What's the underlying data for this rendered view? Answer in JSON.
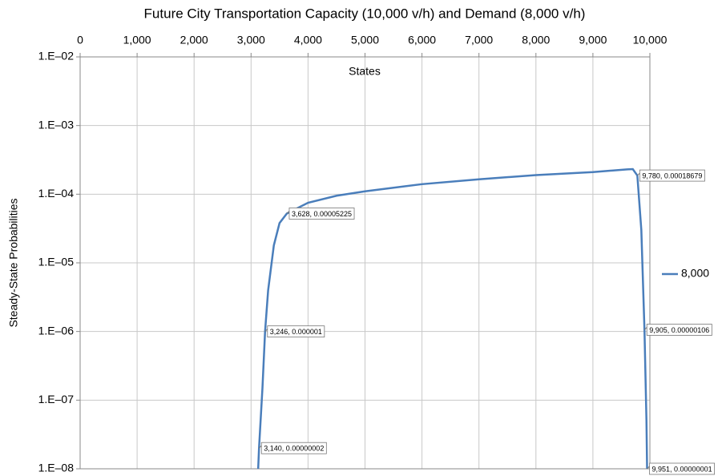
{
  "chart_data": {
    "type": "line",
    "title": "Future City Transportation Capacity (10,000 v/h) and Demand (8,000 v/h)",
    "x_label": "States",
    "y_label": "Steady-State Probabilities",
    "xlim": [
      0,
      10000
    ],
    "xticks": [
      0,
      {
        "value": 1000,
        "label": "1,000"
      },
      {
        "value": 2000,
        "label": "2,000"
      },
      {
        "value": 3000,
        "label": "3,000"
      },
      {
        "value": 4000,
        "label": "4,000"
      },
      {
        "value": 5000,
        "label": "5,000"
      },
      {
        "value": 6000,
        "label": "6,000"
      },
      {
        "value": 7000,
        "label": "7,000"
      },
      {
        "value": 8000,
        "label": "8,000"
      },
      {
        "value": 9000,
        "label": "9,000"
      },
      {
        "value": 10000,
        "label": "10,000"
      }
    ],
    "ylim": [
      1e-08,
      0.01
    ],
    "yscale": "log",
    "yticks": [
      {
        "value": 1e-08,
        "label": "1.E–08"
      },
      {
        "value": 1e-07,
        "label": "1.E–07"
      },
      {
        "value": 1e-06,
        "label": "1.E–06"
      },
      {
        "value": 1e-05,
        "label": "1.E–05"
      },
      {
        "value": 0.0001,
        "label": "1.E–04"
      },
      {
        "value": 0.001,
        "label": "1.E–03"
      },
      {
        "value": 0.01,
        "label": "1.E–02"
      }
    ],
    "x_axis_position": "top",
    "grid": true,
    "legend": "right",
    "series": [
      {
        "name": "8,000",
        "color": "#4a7ebb",
        "x": [
          3125,
          3140,
          3200,
          3246,
          3300,
          3400,
          3500,
          3628,
          4000,
          4500,
          5000,
          6000,
          7000,
          8000,
          9000,
          9600,
          9700,
          9780,
          9850,
          9905,
          9940,
          9951
        ],
        "values": [
          1e-08,
          2e-08,
          1.5e-07,
          1e-06,
          4e-06,
          1.8e-05,
          3.8e-05,
          5.225e-05,
          7.5e-05,
          9.5e-05,
          0.00011,
          0.00014,
          0.000165,
          0.00019,
          0.00021,
          0.00023,
          0.000232,
          0.00018679,
          3e-05,
          1.06e-06,
          5e-08,
          1e-08
        ],
        "value_labels": [
          null,
          "3,140, 0.00000002",
          null,
          "3,246, 0.000001",
          null,
          null,
          null,
          "3,628, 0.00005225",
          null,
          null,
          null,
          null,
          null,
          null,
          null,
          null,
          null,
          "9,780, 0.00018679",
          null,
          "9,905, 0.00000106",
          null,
          "9,951, 0.00000001"
        ]
      }
    ]
  }
}
